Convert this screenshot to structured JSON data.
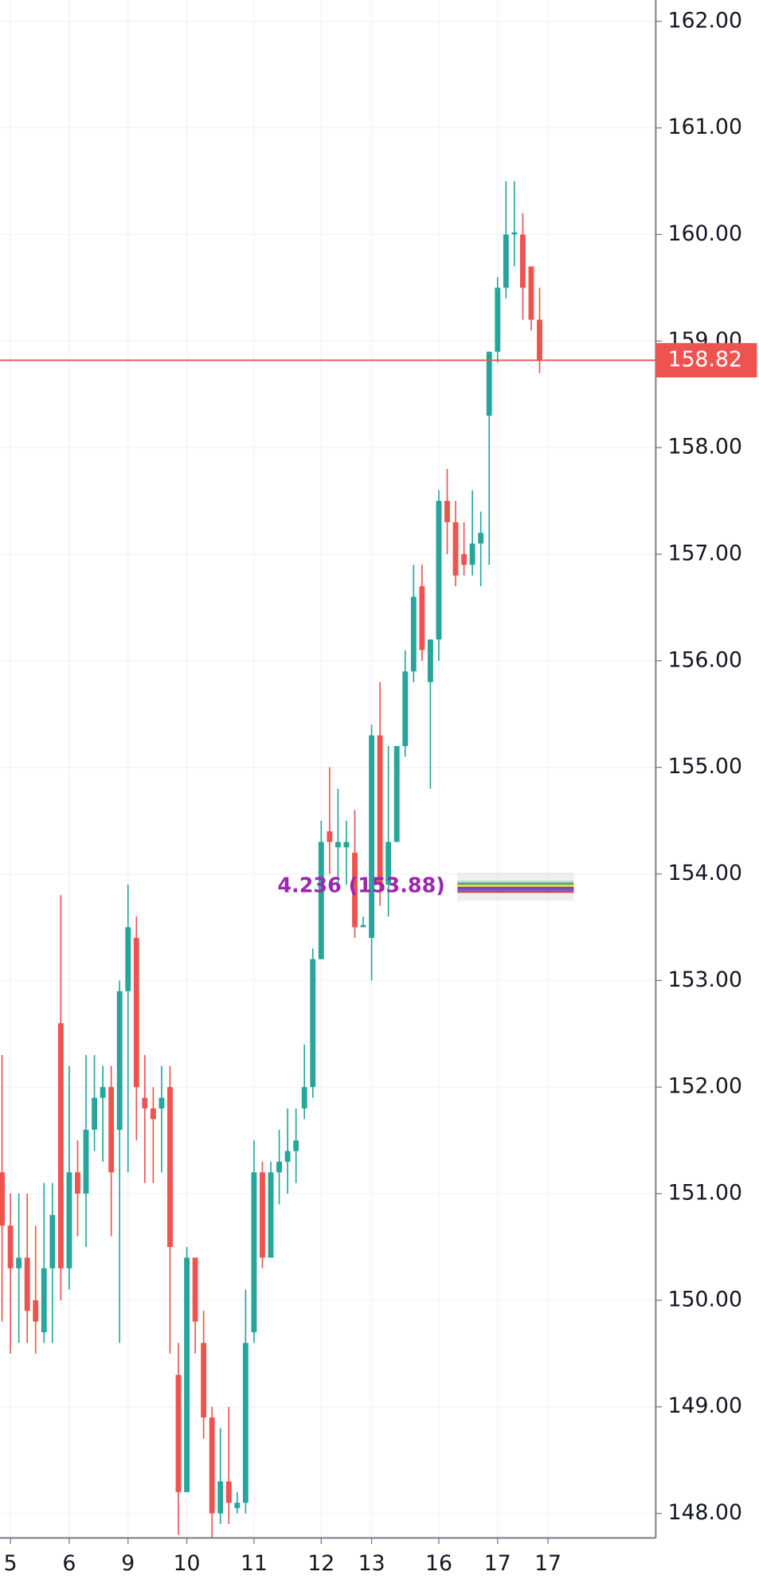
{
  "chart_data": {
    "type": "candlestick",
    "categories": [
      null,
      "5",
      null,
      null,
      null,
      null,
      null,
      null,
      "6",
      null,
      null,
      null,
      null,
      null,
      null,
      "9",
      null,
      null,
      null,
      null,
      null,
      null,
      "10",
      null,
      null,
      null,
      null,
      null,
      null,
      null,
      "11",
      null,
      null,
      null,
      null,
      null,
      null,
      null,
      "12",
      null,
      null,
      null,
      null,
      null,
      "13",
      null,
      null,
      null,
      null,
      null,
      null,
      null,
      "16",
      null,
      null,
      null,
      null,
      null,
      null,
      "17",
      null,
      null,
      null,
      null,
      null,
      "17"
    ],
    "open": [
      151.2,
      150.7,
      150.3,
      150.4,
      150.0,
      149.7,
      150.3,
      152.6,
      150.3,
      151.2,
      151.0,
      151.6,
      151.9,
      152.0,
      151.6,
      152.9,
      153.4,
      151.9,
      151.8,
      151.8,
      152.0,
      149.3,
      148.2,
      150.4,
      149.6,
      148.9,
      148.0,
      148.3,
      148.05,
      148.1,
      149.7,
      151.2,
      150.4,
      151.2,
      151.3,
      151.4,
      151.8,
      152.0,
      153.2,
      154.4,
      154.25,
      154.25,
      154.2,
      153.5,
      153.4,
      155.3,
      153.9,
      154.3,
      155.2,
      155.9,
      156.7,
      155.8,
      156.2,
      157.5,
      157.3,
      157.0,
      156.9,
      157.1,
      158.3,
      158.9,
      159.5,
      160.0,
      160.0,
      159.7,
      159.2,
      null
    ],
    "high": [
      152.3,
      151.0,
      151.0,
      151.0,
      150.7,
      151.1,
      151.1,
      153.8,
      152.2,
      151.5,
      152.3,
      152.3,
      152.2,
      152.2,
      153.0,
      153.9,
      153.6,
      152.3,
      152.0,
      152.2,
      152.2,
      149.6,
      150.5,
      150.4,
      149.9,
      149.0,
      148.8,
      149.0,
      148.2,
      150.1,
      151.5,
      151.3,
      151.3,
      151.6,
      151.8,
      151.8,
      152.4,
      153.3,
      154.5,
      155.0,
      154.8,
      154.5,
      154.6,
      153.6,
      155.4,
      155.8,
      155.2,
      155.2,
      156.1,
      156.9,
      156.9,
      156.2,
      157.6,
      157.8,
      157.5,
      157.3,
      157.6,
      157.4,
      158.9,
      159.6,
      160.5,
      160.5,
      160.2,
      159.7,
      159.5,
      null
    ],
    "low": [
      149.8,
      149.5,
      149.6,
      149.6,
      149.5,
      149.6,
      149.6,
      150.0,
      150.1,
      150.6,
      150.5,
      151.4,
      151.3,
      150.6,
      149.6,
      151.2,
      151.5,
      151.1,
      151.1,
      151.2,
      149.5,
      147.8,
      148.2,
      149.5,
      148.7,
      147.7,
      147.9,
      147.9,
      148.0,
      148.0,
      149.6,
      150.3,
      150.4,
      150.9,
      151.0,
      151.1,
      151.7,
      151.9,
      153.2,
      154.0,
      153.9,
      153.9,
      153.4,
      153.5,
      153.0,
      153.7,
      153.6,
      154.3,
      155.1,
      155.8,
      156.0,
      154.8,
      156.0,
      157.0,
      156.7,
      156.8,
      156.8,
      156.7,
      156.9,
      158.8,
      159.4,
      159.7,
      159.2,
      159.1,
      158.7,
      null
    ],
    "close": [
      150.7,
      150.3,
      150.4,
      149.9,
      149.8,
      150.3,
      150.8,
      150.3,
      151.2,
      151.0,
      151.6,
      151.9,
      152.0,
      151.2,
      152.9,
      153.5,
      152.0,
      151.8,
      151.7,
      151.9,
      150.5,
      148.2,
      150.4,
      149.8,
      148.9,
      148.0,
      148.3,
      148.1,
      148.1,
      149.6,
      151.2,
      150.4,
      151.2,
      151.3,
      151.4,
      151.5,
      152.0,
      153.2,
      154.3,
      154.3,
      154.3,
      154.3,
      153.5,
      153.52,
      155.3,
      153.9,
      154.3,
      155.2,
      155.9,
      156.6,
      156.1,
      156.2,
      157.5,
      157.3,
      156.8,
      156.9,
      157.1,
      157.2,
      158.9,
      159.5,
      160.0,
      160.02,
      159.5,
      159.2,
      158.82,
      null
    ],
    "up_color": "#26a69a",
    "down_color": "#ef5350",
    "ylim": [
      147.77,
      162.2
    ],
    "yticks": [
      {
        "value": 148,
        "label": "148.00"
      },
      {
        "value": 149,
        "label": "149.00"
      },
      {
        "value": 150,
        "label": "150.00"
      },
      {
        "value": 151,
        "label": "151.00"
      },
      {
        "value": 152,
        "label": "152.00"
      },
      {
        "value": 153,
        "label": "153.00"
      },
      {
        "value": 154,
        "label": "154.00"
      },
      {
        "value": 155,
        "label": "155.00"
      },
      {
        "value": 156,
        "label": "156.00"
      },
      {
        "value": 157,
        "label": "157.00"
      },
      {
        "value": 158,
        "label": "158.00"
      },
      {
        "value": 159,
        "label": "159.00"
      },
      {
        "value": 160,
        "label": "160.00"
      },
      {
        "value": 161,
        "label": "161.00"
      },
      {
        "value": 162,
        "label": "162.00"
      }
    ],
    "price_line": 158.82,
    "price_line_color": "#ef5350",
    "annotation": "4.236 (153.88)",
    "annotation_value": 153.88,
    "grid": true
  }
}
